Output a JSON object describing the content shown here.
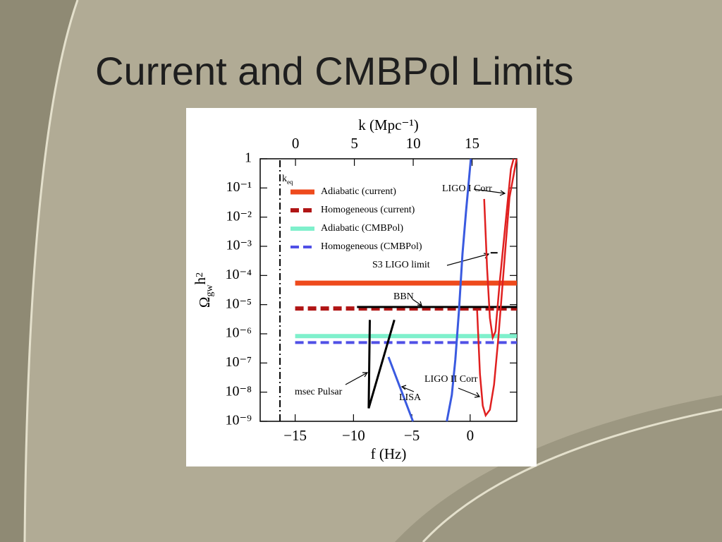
{
  "title": "Current and CMBPol Limits",
  "chart_data": {
    "type": "line",
    "xlabel": "f (Hz)",
    "x2label": "k (Mpc⁻¹)",
    "ylabel": [
      "Ω",
      "gw",
      "h",
      "2"
    ],
    "xlim": [
      -18,
      4
    ],
    "xticks": [
      {
        "value": -15,
        "label": "−15"
      },
      {
        "value": -10,
        "label": "−10"
      },
      {
        "value": -5,
        "label": "−5"
      },
      0
    ],
    "x2lim": [
      -3,
      18.8
    ],
    "x2ticks": [
      0,
      5,
      10,
      15
    ],
    "ylim": [
      1e-09,
      1
    ],
    "ylog": true,
    "yticks": [
      {
        "value": 1,
        "label": "1"
      },
      {
        "value": 0.1,
        "label": "10⁻¹"
      },
      {
        "value": 0.01,
        "label": "10⁻²"
      },
      {
        "value": 0.001,
        "label": "10⁻³"
      },
      {
        "value": 0.0001,
        "label": "10⁻⁴"
      },
      {
        "value": 1e-05,
        "label": "10⁻⁵"
      },
      {
        "value": 1e-06,
        "label": "10⁻⁶"
      },
      {
        "value": 1e-07,
        "label": "10⁻⁷"
      },
      {
        "value": 1e-08,
        "label": "10⁻⁸"
      },
      {
        "value": 1e-09,
        "label": "10⁻⁹"
      }
    ],
    "legend": "upper left",
    "series": [
      {
        "name": "Adiabatic (current)",
        "color": "#ee4a1c",
        "width": 7,
        "dash": "solid",
        "x": [
          -15,
          4
        ],
        "values": [
          5.5e-05,
          5.5e-05
        ]
      },
      {
        "name": "Homogeneous (current)",
        "color": "#b01515",
        "width": 6,
        "dash": "dashed",
        "x": [
          -15,
          4
        ],
        "values": [
          7.4e-06,
          7.4e-06
        ]
      },
      {
        "name": "Adiabatic (CMBPol)",
        "color": "#7ff0cc",
        "width": 6,
        "dash": "solid",
        "x": [
          -15,
          4
        ],
        "values": [
          8.3e-07,
          8.3e-07
        ]
      },
      {
        "name": "Homogeneous (CMBPol)",
        "color": "#5050e6",
        "width": 4,
        "dash": "dashed",
        "x": [
          -15,
          4
        ],
        "values": [
          5e-07,
          5e-07
        ]
      },
      {
        "color": "#000000",
        "width": 2,
        "dash": "dashdot",
        "x": [
          -16.3,
          -16.3
        ],
        "values": [
          1e-09,
          1
        ]
      },
      {
        "color": "#000000",
        "width": 3,
        "dash": "solid",
        "x": [
          -9.7,
          4
        ],
        "values": [
          8.3e-06,
          8.3e-06
        ]
      },
      {
        "color": "#000000",
        "width": 3,
        "dash": "solid",
        "x": [
          -8.6,
          -8.7,
          -6.5
        ],
        "values": [
          3e-06,
          2.8e-09,
          3e-06
        ]
      },
      {
        "color": "#3a5ae0",
        "width": 3,
        "dash": "solid",
        "x": [
          -7,
          -4.9
        ],
        "values": [
          1.6e-07,
          1e-09
        ]
      },
      {
        "color": "#3a5ae0",
        "width": 3,
        "dash": "solid",
        "x": [
          -2,
          -1.57,
          -1.27,
          -0.96,
          -0.66,
          -0.36,
          0.06
        ],
        "values": [
          1e-09,
          8e-09,
          1.3e-07,
          6e-06,
          0.00054,
          0.015,
          1
        ]
      },
      {
        "color": "#e02020",
        "width": 2.5,
        "dash": "solid",
        "x": [
          1.2,
          1.45,
          1.69,
          1.93,
          2.17,
          2.53,
          3.01,
          3.49,
          3.73
        ],
        "values": [
          0.042,
          0.00018,
          3.5e-06,
          7.4e-07,
          1.2e-06,
          5.8e-05,
          0.005,
          0.44,
          1
        ]
      },
      {
        "color": "#e02020",
        "width": 2.5,
        "dash": "solid",
        "x": [
          0.6,
          0.84,
          1.08,
          1.33,
          1.69,
          2.05,
          2.41,
          2.89,
          3.37,
          3.98
        ],
        "values": [
          6.3e-06,
          4.2e-08,
          3.4e-09,
          1.6e-09,
          2.5e-09,
          1.8e-08,
          6.8e-07,
          0.00018,
          0.047,
          1
        ]
      },
      {
        "color": "#000000",
        "width": 2,
        "dash": "dashed",
        "x": [
          1.75,
          2.35
        ],
        "values": [
          0.0006,
          0.0006
        ]
      }
    ],
    "annotations": [
      {
        "text": "k",
        "sub": "eq"
      },
      {
        "text": "LIGO I Corr"
      },
      {
        "text": "S3 LIGO limit"
      },
      {
        "text": "BBN"
      },
      {
        "text": "msec Pulsar"
      },
      {
        "text": "LISA"
      },
      {
        "text": "LIGO II Corr"
      }
    ]
  }
}
